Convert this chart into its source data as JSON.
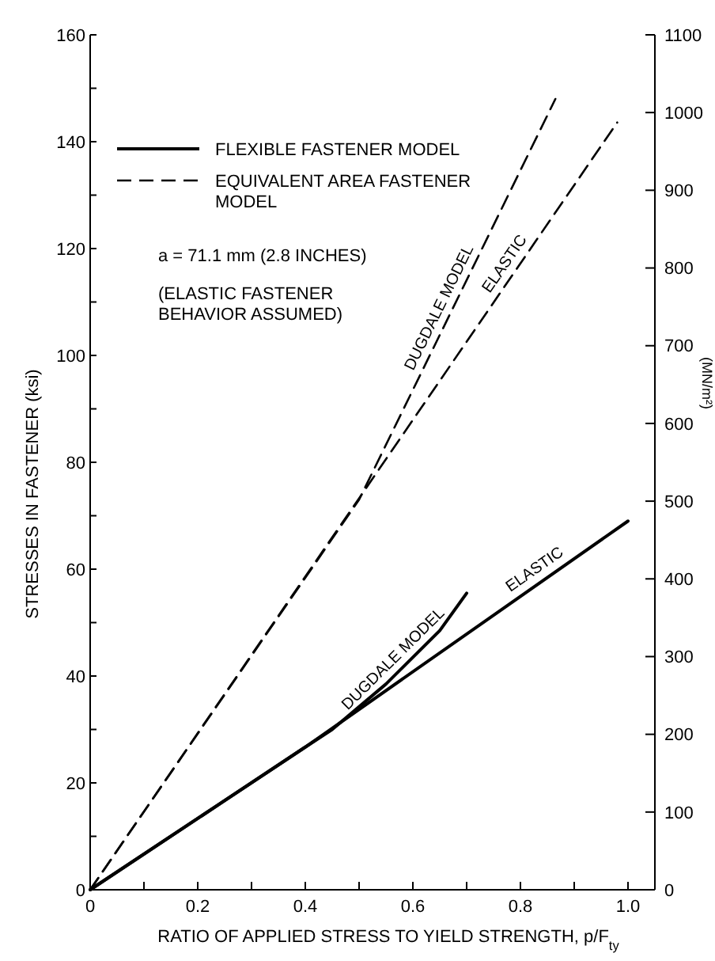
{
  "chart_data": {
    "type": "line",
    "xlabel": "RATIO OF APPLIED STRESS TO YIELD STRENGTH, p/F$_{ty}$",
    "ylabel": "STRESSES IN FASTENER (ksi)",
    "y2label": "(MN/m²)",
    "xlim": [
      0,
      1.05
    ],
    "ylim": [
      0,
      160
    ],
    "y2lim": [
      0,
      1100
    ],
    "xticks": [
      0,
      {
        "value": 0.1,
        "label": null
      },
      0.2,
      {
        "value": 0.3,
        "label": null
      },
      0.4,
      {
        "value": 0.5,
        "label": null
      },
      0.6,
      {
        "value": 0.7,
        "label": null
      },
      0.8,
      {
        "value": 0.9,
        "label": null
      },
      {
        "value": 1,
        "label": "1.0"
      }
    ],
    "yticks": [
      0,
      {
        "value": 10,
        "label": null
      },
      20,
      {
        "value": 30,
        "label": null
      },
      40,
      {
        "value": 50,
        "label": null
      },
      60,
      {
        "value": 70,
        "label": null
      },
      80,
      {
        "value": 90,
        "label": null
      },
      100,
      {
        "value": 110,
        "label": null
      },
      120,
      {
        "value": 130,
        "label": null
      },
      140,
      {
        "value": 150,
        "label": null
      },
      160
    ],
    "y2ticks": [
      0,
      100,
      200,
      300,
      400,
      500,
      600,
      700,
      800,
      900,
      1000,
      1100
    ],
    "legend": "top left",
    "grid": false,
    "marker": "none",
    "series": [
      {
        "name": "FLEXIBLE FASTENER MODEL",
        "color": "#000000",
        "line_style": "solid",
        "x": [
          0,
          0.4,
          1.0
        ],
        "values": [
          0,
          26.7,
          69
        ]
      },
      {
        "color": "#000000",
        "line_style": "solid",
        "x": [
          0,
          0.4,
          0.45,
          0.55,
          0.65,
          0.7
        ],
        "values": [
          0,
          26.7,
          30,
          38.5,
          48.5,
          55.5
        ]
      },
      {
        "name": "EQUIVALENT AREA FASTENER MODEL",
        "color": "#000000",
        "line_style": "dashed",
        "x": [
          0,
          0.98
        ],
        "values": [
          0,
          143.6
        ]
      },
      {
        "color": "#000000",
        "line_style": "dashed",
        "x": [
          0,
          0.5,
          0.865
        ],
        "values": [
          0,
          73,
          148
        ]
      }
    ],
    "annotations": [
      "a = 71.1 mm (2.8 INCHES)",
      "(ELASTIC FASTENER BEHAVIOR ASSUMED)",
      {
        "text": "DUGDALE MODEL",
        "x": 0.67,
        "y": 107.9
      },
      {
        "text": "ELASTIC",
        "x": 0.79,
        "y": 115.8
      },
      {
        "text": "DUGDALE MODEL",
        "x": 0.58,
        "y": 41.5
      },
      {
        "text": "ELASTIC",
        "x": 0.84,
        "y": 58
      }
    ]
  }
}
